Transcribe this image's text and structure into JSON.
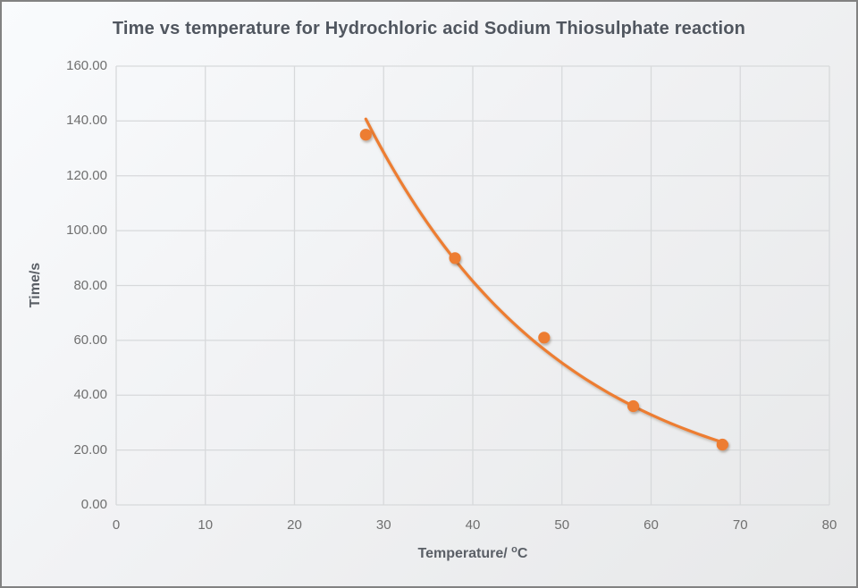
{
  "colors": {
    "series": "#ED7D31",
    "gridline": "#D7D9DB",
    "title_text": "#50565F",
    "axis_title_text": "#5A5F66",
    "tick_text": "#6F6F6F",
    "chart_border": "#828282",
    "background_top_left": "#F9FBFD",
    "background_bottom_right": "#E7E8E9"
  },
  "chart_data": {
    "type": "scatter",
    "title": "Time vs temperature for Hydrochloric acid Sodium Thiosulphate reaction",
    "xlabel": "Temperature/ °C",
    "xlabel_parts": {
      "prefix": "Temperature/ ",
      "sup": "o",
      "suffix": "C"
    },
    "ylabel": "Time/s",
    "xlim": [
      0,
      80
    ],
    "ylim": [
      0,
      160
    ],
    "x_ticks": [
      0,
      10,
      20,
      30,
      40,
      50,
      60,
      70,
      80
    ],
    "y_tick_values": [
      0,
      20,
      40,
      60,
      80,
      100,
      120,
      140,
      160
    ],
    "y_tick_labels": [
      "0.00",
      "20.00",
      "40.00",
      "60.00",
      "80.00",
      "100.00",
      "120.00",
      "140.00",
      "160.00"
    ],
    "grid": true,
    "legend": "none",
    "series": [
      {
        "name": "Time vs temperature",
        "x": [
          28,
          38,
          48,
          58,
          68
        ],
        "y": [
          135,
          90,
          61,
          36,
          22
        ],
        "marker": "circle",
        "color": "#ED7D31"
      }
    ],
    "trendline": {
      "type": "exponential",
      "a": 502.3,
      "b": -0.04544,
      "x_start": 28.0,
      "x_end": 68.5,
      "color": "#ED7D31"
    }
  }
}
